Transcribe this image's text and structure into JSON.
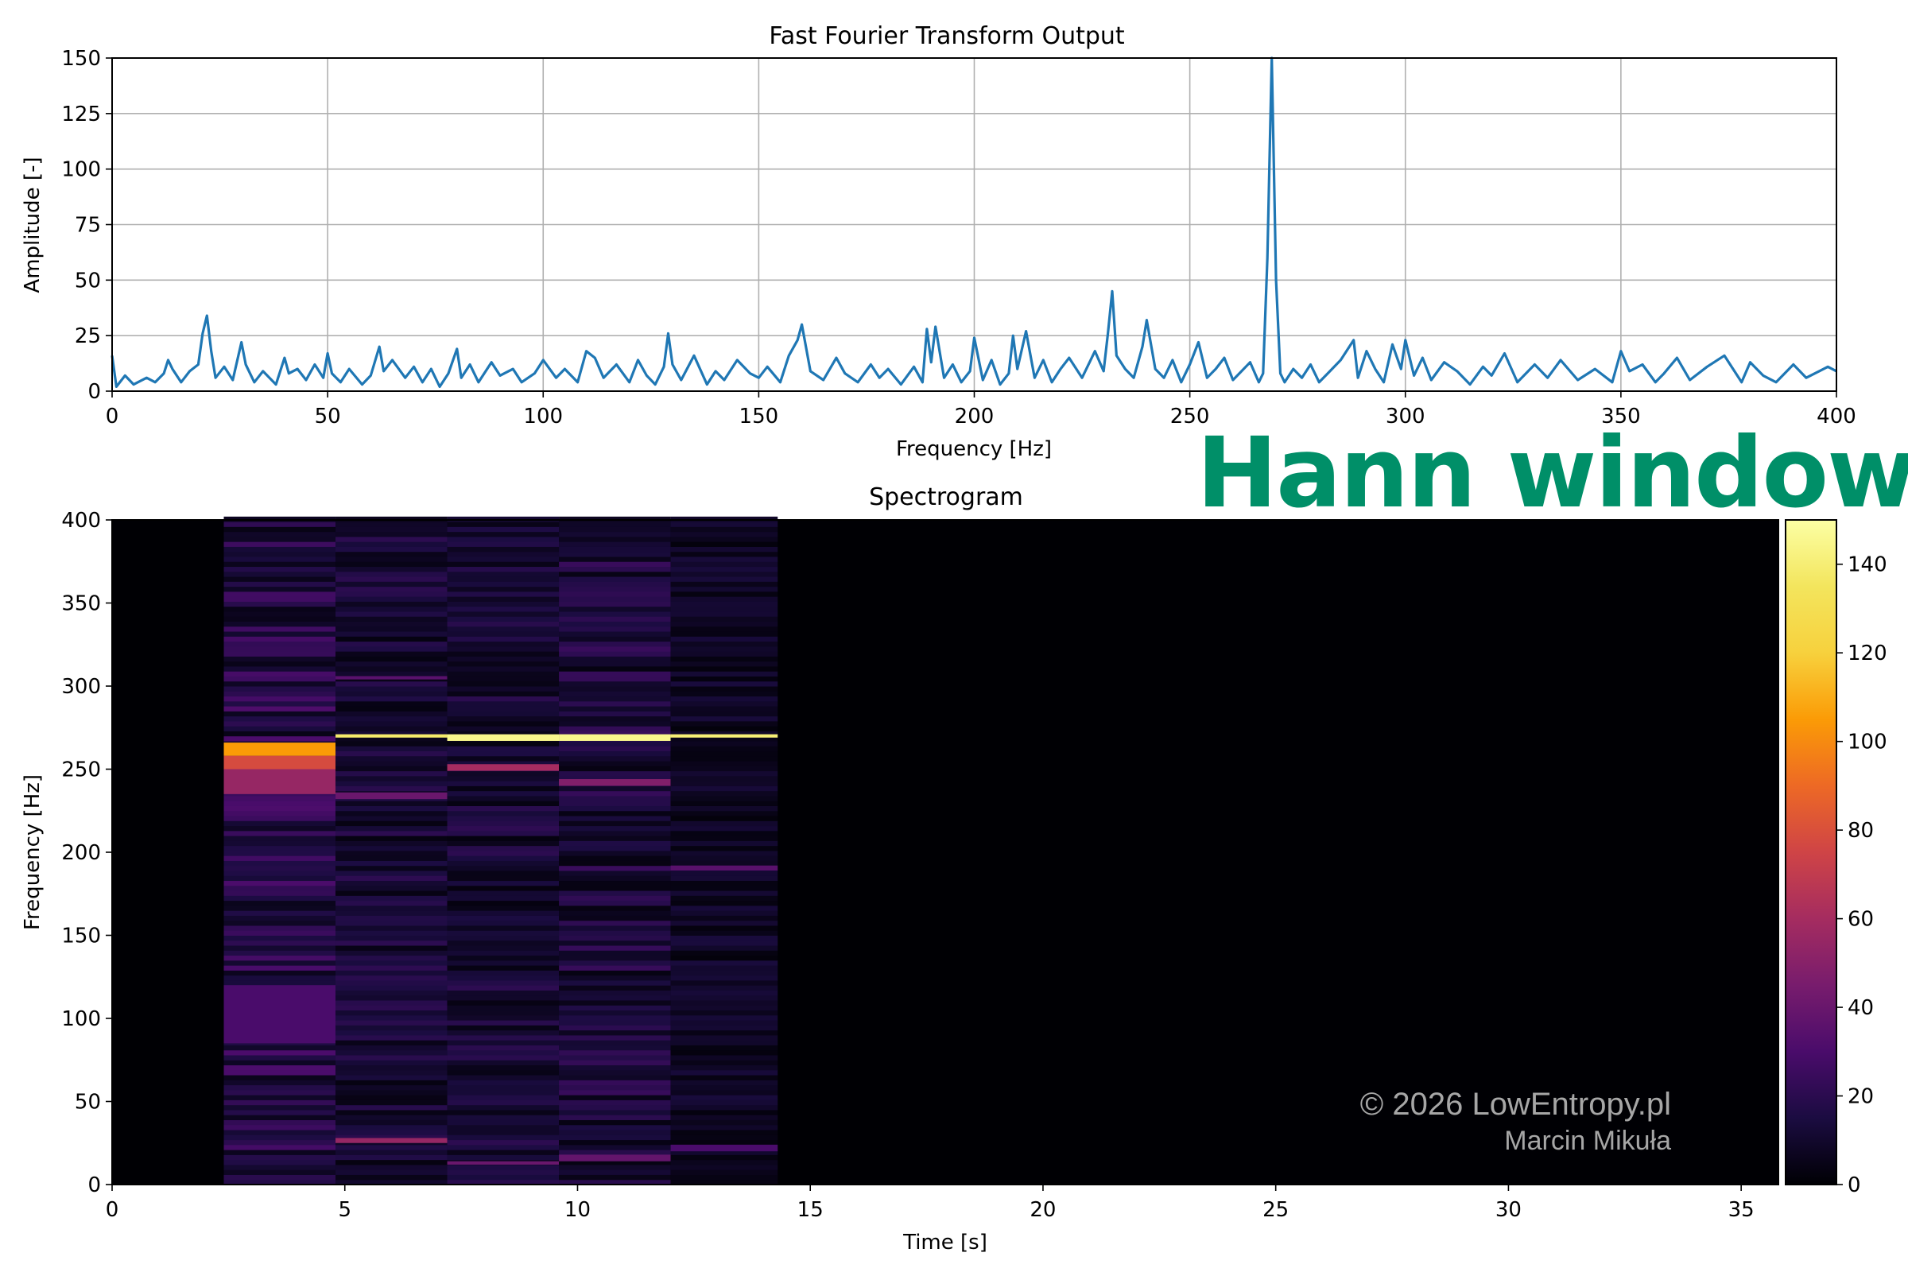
{
  "overlay": {
    "window_label": "Hann window",
    "watermark_line1": "© 2026 LowEntropy.pl",
    "watermark_line2": "Marcin Mikuła"
  },
  "chart_data": [
    {
      "type": "line",
      "title": "Fast Fourier Transform Output",
      "xlabel": "Frequency [Hz]",
      "ylabel": "Amplitude [-]",
      "xlim": [
        0,
        400
      ],
      "ylim": [
        0,
        150
      ],
      "xticks": [
        0,
        50,
        100,
        150,
        200,
        250,
        300,
        350,
        400
      ],
      "yticks": [
        0,
        25,
        50,
        75,
        100,
        125,
        150
      ],
      "grid": true,
      "color": "#1f77b4",
      "series": [
        {
          "x": [
            0,
            1,
            3,
            5,
            8,
            10,
            12,
            13,
            14,
            16,
            18,
            20,
            21,
            22,
            23,
            24,
            26,
            28,
            30,
            31,
            33,
            35,
            38,
            40,
            41,
            43,
            45,
            47,
            49,
            50,
            51,
            53,
            55,
            58,
            60,
            62,
            63,
            65,
            68,
            70,
            72,
            74,
            76,
            78,
            80,
            81,
            83,
            85,
            88,
            90,
            93,
            95,
            98,
            100,
            103,
            105,
            108,
            110,
            112,
            114,
            117,
            120,
            122,
            124,
            126,
            128,
            129,
            130,
            132,
            135,
            138,
            140,
            142,
            145,
            148,
            150,
            152,
            155,
            157,
            159,
            160,
            162,
            165,
            168,
            170,
            173,
            176,
            178,
            180,
            183,
            186,
            188,
            189,
            190,
            191,
            193,
            195,
            197,
            199,
            200,
            202,
            204,
            206,
            208,
            209,
            210,
            212,
            214,
            216,
            218,
            220,
            222,
            225,
            228,
            230,
            231,
            232,
            233,
            235,
            237,
            239,
            240,
            242,
            244,
            246,
            248,
            250,
            252,
            254,
            256,
            258,
            260,
            262,
            264,
            266,
            267,
            268,
            269,
            270,
            271,
            272,
            274,
            276,
            278,
            280,
            282,
            285,
            288,
            289,
            291,
            293,
            295,
            297,
            299,
            300,
            302,
            304,
            306,
            309,
            312,
            315,
            318,
            320,
            323,
            326,
            330,
            333,
            336,
            340,
            344,
            348,
            350,
            352,
            355,
            358,
            360,
            363,
            366,
            370,
            374,
            378,
            380,
            383,
            386,
            390,
            393,
            396,
            398,
            400
          ],
          "y": [
            16,
            2,
            7,
            3,
            6,
            4,
            8,
            14,
            10,
            4,
            9,
            12,
            26,
            34,
            18,
            6,
            11,
            5,
            22,
            12,
            4,
            9,
            3,
            15,
            8,
            10,
            5,
            12,
            6,
            17,
            8,
            4,
            10,
            3,
            7,
            20,
            9,
            14,
            6,
            11,
            4,
            10,
            2,
            8,
            19,
            6,
            12,
            4,
            13,
            7,
            10,
            4,
            8,
            14,
            6,
            10,
            4,
            18,
            15,
            6,
            12,
            4,
            14,
            7,
            3,
            11,
            26,
            12,
            5,
            16,
            3,
            9,
            5,
            14,
            8,
            6,
            11,
            4,
            16,
            23,
            30,
            9,
            5,
            15,
            8,
            4,
            12,
            6,
            10,
            3,
            11,
            4,
            28,
            13,
            29,
            6,
            12,
            4,
            9,
            24,
            5,
            14,
            3,
            8,
            25,
            10,
            27,
            6,
            14,
            4,
            10,
            15,
            6,
            18,
            9,
            26,
            45,
            16,
            10,
            6,
            20,
            32,
            10,
            6,
            14,
            4,
            12,
            22,
            6,
            10,
            15,
            5,
            9,
            13,
            4,
            8,
            60,
            150,
            50,
            8,
            4,
            10,
            6,
            12,
            4,
            8,
            14,
            23,
            6,
            18,
            10,
            4,
            21,
            10,
            23,
            7,
            15,
            5,
            13,
            9,
            3,
            11,
            7,
            17,
            4,
            12,
            6,
            14,
            5,
            10,
            4,
            18,
            9,
            12,
            4,
            8,
            15,
            5,
            11,
            16,
            4,
            13,
            7,
            4,
            12,
            6,
            9,
            11,
            9
          ]
        }
      ]
    },
    {
      "type": "heatmap",
      "title": "Spectrogram",
      "xlabel": "Time [s]",
      "ylabel": "Frequency [Hz]",
      "xlim": [
        0,
        35.8
      ],
      "ylim": [
        0,
        400
      ],
      "xticks": [
        0,
        5,
        10,
        15,
        20,
        25,
        30,
        35
      ],
      "yticks": [
        0,
        50,
        100,
        150,
        200,
        250,
        300,
        350,
        400
      ],
      "colormap": "inferno",
      "colorbar": {
        "min": 0,
        "max": 150,
        "ticks": [
          0,
          20,
          40,
          60,
          80,
          100,
          120,
          140
        ]
      },
      "segments": [
        {
          "t_start": 0.0,
          "t_end": 2.4,
          "background": 0,
          "bands": []
        },
        {
          "t_start": 2.4,
          "t_end": 4.8,
          "background": 18,
          "bands": [
            {
              "f_low": 258,
              "f_high": 266,
              "value": 105
            },
            {
              "f_low": 250,
              "f_high": 258,
              "value": 78
            },
            {
              "f_low": 235,
              "f_high": 250,
              "value": 55
            },
            {
              "f_low": 85,
              "f_high": 120,
              "value": 30
            }
          ]
        },
        {
          "t_start": 4.8,
          "t_end": 7.2,
          "background": 12,
          "bands": [
            {
              "f_low": 269,
              "f_high": 271,
              "value": 138
            },
            {
              "f_low": 232,
              "f_high": 236,
              "value": 40
            },
            {
              "f_low": 304,
              "f_high": 306,
              "value": 35
            },
            {
              "f_low": 25,
              "f_high": 28,
              "value": 55
            }
          ]
        },
        {
          "t_start": 7.2,
          "t_end": 9.6,
          "background": 12,
          "bands": [
            {
              "f_low": 267,
              "f_high": 271,
              "value": 145
            },
            {
              "f_low": 249,
              "f_high": 253,
              "value": 60
            },
            {
              "f_low": 12,
              "f_high": 14,
              "value": 40
            }
          ]
        },
        {
          "t_start": 9.6,
          "t_end": 12.0,
          "background": 14,
          "bands": [
            {
              "f_low": 267,
              "f_high": 271,
              "value": 145
            },
            {
              "f_low": 240,
              "f_high": 244,
              "value": 48
            },
            {
              "f_low": 14,
              "f_high": 18,
              "value": 38
            }
          ]
        },
        {
          "t_start": 12.0,
          "t_end": 14.3,
          "background": 8,
          "bands": [
            {
              "f_low": 269,
              "f_high": 271,
              "value": 140
            },
            {
              "f_low": 189,
              "f_high": 192,
              "value": 35
            },
            {
              "f_low": 20,
              "f_high": 24,
              "value": 30
            }
          ]
        },
        {
          "t_start": 14.3,
          "t_end": 35.8,
          "background": 0,
          "bands": []
        }
      ]
    }
  ]
}
